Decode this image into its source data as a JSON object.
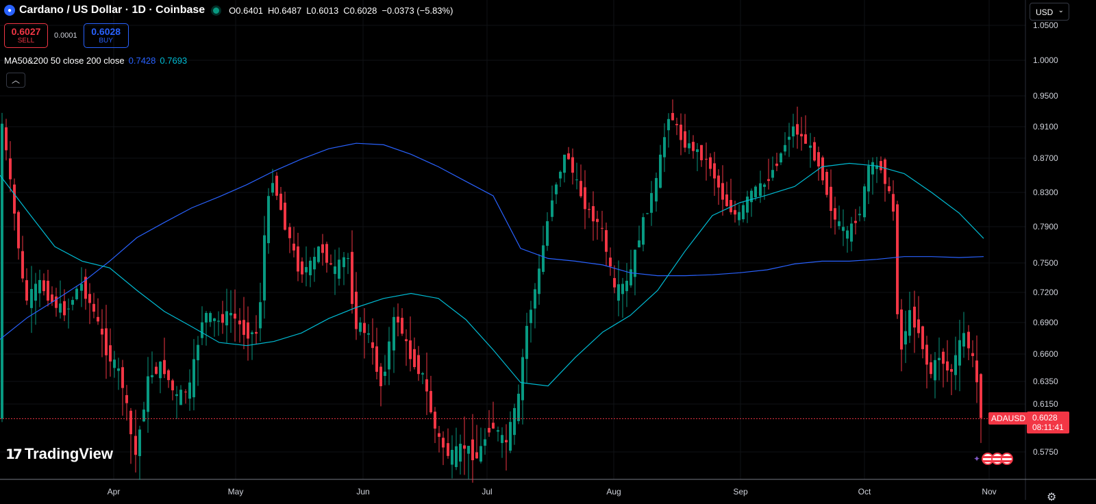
{
  "header": {
    "coin_icon": "cardano-icon",
    "title": "Cardano / US Dollar · 1D · Coinbase",
    "open": "O0.6401",
    "high": "H0.6487",
    "low": "L0.6013",
    "close": "C0.6028",
    "change": "−0.0373 (−5.83%)"
  },
  "trade": {
    "sell_price": "0.6027",
    "sell_label": "SELL",
    "spread": "0.0001",
    "buy_price": "0.6028",
    "buy_label": "BUY"
  },
  "indicator": {
    "label": "MA50&200 50 close 200 close",
    "ma50_value": "0.7428",
    "ma200_value": "0.7693"
  },
  "currency_button": "USD",
  "logo_text": "TradingView",
  "price_tag": {
    "symbol": "ADAUSD",
    "price": "0.6028",
    "countdown": "08:11:41"
  },
  "colors": {
    "up": "#089981",
    "down": "#f23645",
    "ma50": "#2962ff",
    "ma200": "#00bcd4",
    "background": "#000000"
  },
  "chart_data": {
    "type": "candlestick",
    "y_axis_ticks": [
      "1.0500",
      "1.0000",
      "0.9500",
      "0.9100",
      "0.8700",
      "0.8300",
      "0.7900",
      "0.7500",
      "0.7200",
      "0.6900",
      "0.6600",
      "0.6350",
      "0.6150",
      "0.5750"
    ],
    "x_axis_ticks": [
      "Apr",
      "May",
      "Jun",
      "Jul",
      "Aug",
      "Sep",
      "Oct",
      "Nov"
    ],
    "ylim": [
      0.56,
      1.06
    ],
    "last_price": 0.6028,
    "series": [
      {
        "name": "MA50",
        "color": "#2962ff",
        "points": [
          [
            0,
            0.674
          ],
          [
            40,
            0.695
          ],
          [
            80,
            0.712
          ],
          [
            120,
            0.73
          ],
          [
            160,
            0.752
          ],
          [
            200,
            0.778
          ],
          [
            240,
            0.795
          ],
          [
            280,
            0.812
          ],
          [
            320,
            0.825
          ],
          [
            360,
            0.839
          ],
          [
            400,
            0.855
          ],
          [
            440,
            0.869
          ],
          [
            480,
            0.882
          ],
          [
            520,
            0.889
          ],
          [
            560,
            0.887
          ],
          [
            600,
            0.875
          ],
          [
            640,
            0.86
          ],
          [
            680,
            0.843
          ],
          [
            720,
            0.826
          ],
          [
            760,
            0.766
          ],
          [
            800,
            0.755
          ],
          [
            840,
            0.752
          ],
          [
            880,
            0.748
          ],
          [
            920,
            0.74
          ],
          [
            960,
            0.737
          ],
          [
            1000,
            0.737
          ],
          [
            1040,
            0.738
          ],
          [
            1080,
            0.74
          ],
          [
            1120,
            0.743
          ],
          [
            1160,
            0.749
          ],
          [
            1200,
            0.752
          ],
          [
            1240,
            0.752
          ],
          [
            1280,
            0.754
          ],
          [
            1320,
            0.757
          ],
          [
            1360,
            0.757
          ],
          [
            1400,
            0.756
          ],
          [
            1436,
            0.757
          ]
        ]
      },
      {
        "name": "MA200",
        "color": "#00bcd4",
        "points": [
          [
            0,
            0.85
          ],
          [
            40,
            0.808
          ],
          [
            80,
            0.768
          ],
          [
            120,
            0.752
          ],
          [
            160,
            0.745
          ],
          [
            200,
            0.722
          ],
          [
            240,
            0.701
          ],
          [
            280,
            0.686
          ],
          [
            320,
            0.671
          ],
          [
            360,
            0.668
          ],
          [
            400,
            0.672
          ],
          [
            440,
            0.68
          ],
          [
            480,
            0.694
          ],
          [
            520,
            0.705
          ],
          [
            560,
            0.714
          ],
          [
            600,
            0.719
          ],
          [
            640,
            0.714
          ],
          [
            680,
            0.693
          ],
          [
            720,
            0.664
          ],
          [
            760,
            0.634
          ],
          [
            800,
            0.631
          ],
          [
            840,
            0.657
          ],
          [
            880,
            0.681
          ],
          [
            920,
            0.697
          ],
          [
            960,
            0.722
          ],
          [
            1000,
            0.763
          ],
          [
            1040,
            0.803
          ],
          [
            1080,
            0.818
          ],
          [
            1120,
            0.827
          ],
          [
            1160,
            0.837
          ],
          [
            1200,
            0.86
          ],
          [
            1240,
            0.864
          ],
          [
            1280,
            0.861
          ],
          [
            1320,
            0.852
          ],
          [
            1360,
            0.83
          ],
          [
            1400,
            0.806
          ],
          [
            1436,
            0.777
          ]
        ]
      }
    ],
    "candles_anchor": [
      [
        0,
        0.95
      ],
      [
        20,
        0.83
      ],
      [
        40,
        0.71
      ],
      [
        60,
        0.73
      ],
      [
        80,
        0.71
      ],
      [
        100,
        0.7
      ],
      [
        120,
        0.73
      ],
      [
        140,
        0.7
      ],
      [
        160,
        0.66
      ],
      [
        180,
        0.64
      ],
      [
        200,
        0.57
      ],
      [
        220,
        0.64
      ],
      [
        240,
        0.65
      ],
      [
        260,
        0.62
      ],
      [
        280,
        0.63
      ],
      [
        300,
        0.7
      ],
      [
        320,
        0.69
      ],
      [
        340,
        0.7
      ],
      [
        360,
        0.68
      ],
      [
        380,
        0.68
      ],
      [
        390,
        0.79
      ],
      [
        400,
        0.85
      ],
      [
        420,
        0.79
      ],
      [
        440,
        0.74
      ],
      [
        460,
        0.75
      ],
      [
        470,
        0.77
      ],
      [
        490,
        0.74
      ],
      [
        510,
        0.76
      ],
      [
        520,
        0.69
      ],
      [
        540,
        0.68
      ],
      [
        560,
        0.63
      ],
      [
        580,
        0.7
      ],
      [
        600,
        0.66
      ],
      [
        620,
        0.64
      ],
      [
        640,
        0.59
      ],
      [
        660,
        0.57
      ],
      [
        680,
        0.58
      ],
      [
        700,
        0.57
      ],
      [
        720,
        0.6
      ],
      [
        740,
        0.58
      ],
      [
        760,
        0.62
      ],
      [
        770,
        0.68
      ],
      [
        790,
        0.74
      ],
      [
        810,
        0.83
      ],
      [
        830,
        0.88
      ],
      [
        840,
        0.85
      ],
      [
        860,
        0.81
      ],
      [
        880,
        0.79
      ],
      [
        900,
        0.72
      ],
      [
        920,
        0.73
      ],
      [
        940,
        0.79
      ],
      [
        960,
        0.84
      ],
      [
        980,
        0.93
      ],
      [
        1000,
        0.89
      ],
      [
        1020,
        0.88
      ],
      [
        1040,
        0.86
      ],
      [
        1060,
        0.82
      ],
      [
        1080,
        0.8
      ],
      [
        1100,
        0.83
      ],
      [
        1120,
        0.84
      ],
      [
        1140,
        0.87
      ],
      [
        1160,
        0.91
      ],
      [
        1180,
        0.89
      ],
      [
        1200,
        0.86
      ],
      [
        1220,
        0.8
      ],
      [
        1240,
        0.78
      ],
      [
        1260,
        0.81
      ],
      [
        1270,
        0.86
      ],
      [
        1290,
        0.86
      ],
      [
        1310,
        0.8
      ],
      [
        1315,
        0.65
      ],
      [
        1330,
        0.7
      ],
      [
        1345,
        0.68
      ],
      [
        1360,
        0.64
      ],
      [
        1375,
        0.66
      ],
      [
        1390,
        0.64
      ],
      [
        1410,
        0.68
      ],
      [
        1425,
        0.65
      ],
      [
        1436,
        0.603
      ]
    ]
  }
}
